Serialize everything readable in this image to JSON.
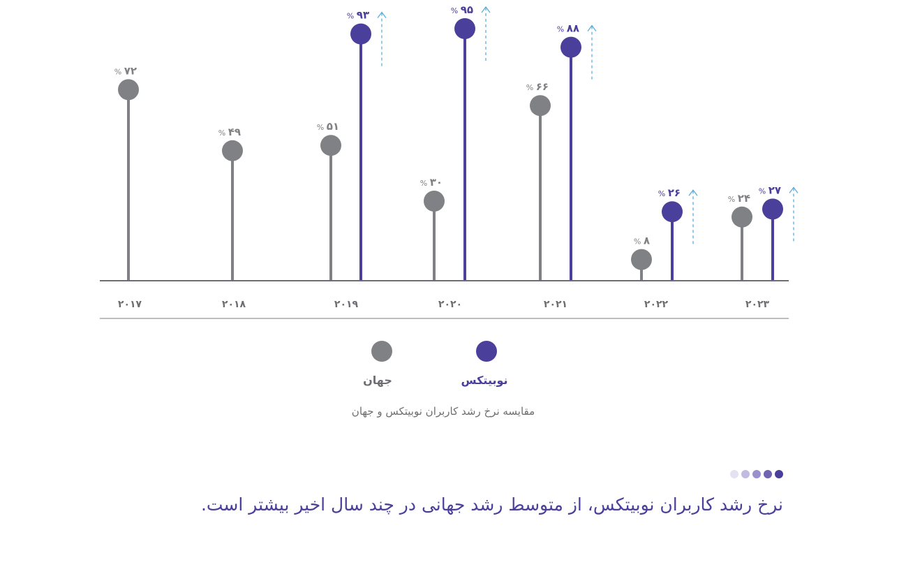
{
  "chart_data": {
    "type": "lollipop",
    "title": "مقایسه نرخ رشد کاربران نوبیتکس و جهان",
    "headline": "نرخ رشد کاربران نوبیتکس، از متوسط رشد جهانی در چند سال اخیر بیشتر است.",
    "categories": [
      "۲۰۱۷",
      "۲۰۱۸",
      "۲۰۱۹",
      "۲۰۲۰",
      "۲۰۲۱",
      "۲۰۲۲",
      "۲۰۲۳"
    ],
    "x": [
      2017,
      2018,
      2019,
      2020,
      2021,
      2022,
      2023
    ],
    "series": [
      {
        "name": "جهان",
        "color": "#808184",
        "values": [
          72,
          49,
          51,
          30,
          66,
          8,
          24
        ],
        "labels": [
          "۷۲",
          "۴۹",
          "۵۱",
          "۳۰",
          "۶۶",
          "۸",
          "۲۴"
        ]
      },
      {
        "name": "نوبیتکس",
        "color": "#4a3f9a",
        "values": [
          null,
          null,
          93,
          95,
          88,
          26,
          27
        ],
        "labels": [
          "",
          "",
          "۹۳",
          "۹۵",
          "۸۸",
          "۲۶",
          "۲۷"
        ]
      }
    ],
    "unit": "%",
    "ylim": [
      0,
      100
    ],
    "grid": false,
    "legend_position": "bottom",
    "annotations": "dashed upward arrows beside Nobitex values (2019-2023)"
  },
  "legend": {
    "nobitex": "نوبیتکس",
    "world": "جهان"
  },
  "caption": "مقایسه نرخ رشد کاربران نوبیتکس و جهان",
  "headline": "نرخ رشد کاربران نوبیتکس، از متوسط رشد جهانی در چند سال اخیر بیشتر است.",
  "percent_sign": "%",
  "colors": {
    "world": "#808184",
    "nobitex": "#4a3f9a",
    "arrow": "#5aaed9",
    "axis": "#6d6e71",
    "dots": [
      "#e4e1f3",
      "#c1bbe2",
      "#9990cc",
      "#6f63b2",
      "#4a3f9a"
    ]
  }
}
